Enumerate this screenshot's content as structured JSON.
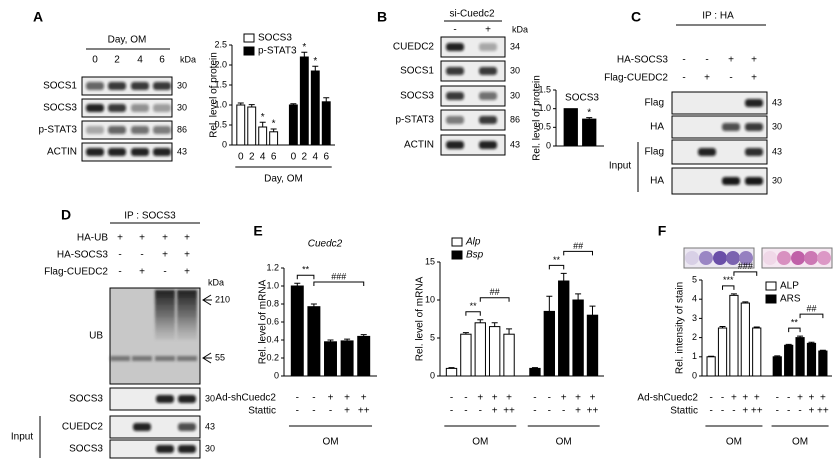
{
  "panels": {
    "A": {
      "letter": "A",
      "header": "Day, OM",
      "lanes": [
        "0",
        "2",
        "4",
        "6"
      ],
      "unit": "kDa",
      "rows": [
        {
          "name": "SOCS1",
          "kda": 30
        },
        {
          "name": "SOCS3",
          "kda": 30
        },
        {
          "name": "p-STAT3",
          "kda": 86
        },
        {
          "name": "ACTIN",
          "kda": 43
        }
      ]
    },
    "B": {
      "letter": "B",
      "header": "si-Cuedc2",
      "lanes": [
        "-",
        "+"
      ],
      "unit": "kDa",
      "rows": [
        {
          "name": "CUEDC2",
          "kda": 34
        },
        {
          "name": "SOCS1",
          "kda": 30
        },
        {
          "name": "SOCS3",
          "kda": 30
        },
        {
          "name": "p-STAT3",
          "kda": 86
        },
        {
          "name": "ACTIN",
          "kda": 43
        }
      ]
    },
    "C": {
      "letter": "C",
      "header": "IP : HA",
      "conditions": [
        {
          "name": "HA-SOCS3",
          "signs": [
            "-",
            "-",
            "+",
            "+"
          ]
        },
        {
          "name": "Flag-CUEDC2",
          "signs": [
            "-",
            "+",
            "-",
            "+"
          ]
        }
      ],
      "rows": [
        {
          "name": "Flag",
          "kda": 43
        },
        {
          "name": "HA",
          "kda": 30
        },
        {
          "name": "Flag",
          "kda": 43
        },
        {
          "name": "HA",
          "kda": 30
        }
      ],
      "group": "Input"
    },
    "D": {
      "letter": "D",
      "header": "IP : SOCS3",
      "unit": "kDa",
      "conditions": [
        {
          "name": "HA-UB",
          "signs": [
            "+",
            "+",
            "+",
            "+"
          ]
        },
        {
          "name": "HA-SOCS3",
          "signs": [
            "-",
            "-",
            "+",
            "+"
          ]
        },
        {
          "name": "Flag-CUEDC2",
          "signs": [
            "-",
            "+",
            "-",
            "+"
          ]
        }
      ],
      "rows": [
        {
          "name": "UB",
          "markers": [
            210,
            55
          ]
        },
        {
          "name": "SOCS3",
          "kda": 30
        },
        {
          "name": "CUEDC2",
          "kda": 43
        },
        {
          "name": "SOCS3",
          "kda": 30
        }
      ],
      "group": "Input"
    },
    "E": {
      "letter": "E"
    },
    "F": {
      "letter": "F"
    }
  },
  "chart_data": [
    {
      "type": "bar",
      "ylabel": "Rel. level of protein",
      "ylim": [
        0,
        2.5
      ],
      "yticks": [
        0,
        0.5,
        {
          "value": 1,
          "label": "1.0"
        },
        1.5,
        {
          "value": 2,
          "label": "2.0"
        },
        2.5
      ],
      "categories": [
        "0",
        "2",
        "4",
        "6"
      ],
      "xlabel": "Day, OM",
      "series": [
        {
          "name": "SOCS3",
          "color": "#ffffff",
          "values": [
            1.0,
            0.95,
            0.45,
            0.33
          ],
          "errors": [
            0.05,
            0.06,
            0.12,
            0.07
          ],
          "stars": [
            null,
            null,
            "*",
            "*"
          ]
        },
        {
          "name": "p-STAT3",
          "color": "#000000",
          "values": [
            1.0,
            2.2,
            1.85,
            1.08
          ],
          "errors": [
            0.03,
            0.12,
            0.12,
            0.1
          ],
          "stars": [
            null,
            "*",
            "*",
            null
          ]
        }
      ]
    },
    {
      "type": "bar",
      "title": "SOCS3",
      "ylabel": "Rel. level of protein",
      "ylim": [
        0,
        1.5
      ],
      "yticks": [
        0,
        0.5,
        {
          "value": 1,
          "label": "1.0"
        },
        1.5
      ],
      "series": [
        {
          "color": "#000000",
          "values": [
            1.0,
            0.72
          ],
          "errors": [
            null,
            0.04
          ],
          "stars": [
            null,
            "*"
          ]
        }
      ]
    },
    {
      "type": "bar",
      "title": "Cuedc2",
      "ylabel": "Rel. level of mRNA",
      "ylim": [
        0,
        1.2
      ],
      "yticks": [
        0,
        0.2,
        0.4,
        0.6,
        0.8,
        {
          "value": 1,
          "label": "1.0"
        },
        1.2
      ],
      "series": [
        {
          "color": "#000000",
          "values": [
            1.0,
            0.77,
            0.38,
            0.39,
            0.44
          ],
          "errors": [
            0.03,
            0.03,
            0.02,
            0.02,
            0.02
          ],
          "comparisons": [
            {
              "label": "**",
              "pair": [
                0,
                1
              ]
            },
            {
              "label": "###",
              "pair": [
                1,
                4
              ]
            }
          ]
        }
      ],
      "treatments": [
        {
          "name": "Ad-shCuedc2",
          "signs": [
            "-",
            "-",
            "+",
            "+",
            "+"
          ]
        },
        {
          "name": "Stattic",
          "signs": [
            "-",
            "-",
            "-",
            "+",
            "++"
          ]
        }
      ],
      "group_labels": [
        "OM"
      ]
    },
    {
      "type": "bar",
      "ylabel": "Rel. level of mRNA",
      "ylim": [
        0,
        15
      ],
      "yticks": [
        0,
        5,
        10,
        15
      ],
      "series": [
        {
          "name": "Alp",
          "color": "#ffffff",
          "values": [
            1,
            5.5,
            7,
            6.5,
            5.5
          ],
          "errors": [
            0.1,
            0.2,
            0.4,
            0.5,
            0.7
          ],
          "comparisons": [
            {
              "label": "**",
              "pair": [
                1,
                2
              ]
            },
            {
              "label": "##",
              "pair": [
                2,
                4
              ]
            }
          ]
        },
        {
          "name": "Bsp",
          "color": "#000000",
          "values": [
            1,
            8.5,
            12.5,
            10,
            8
          ],
          "errors": [
            0.1,
            2,
            1,
            0.8,
            1.2
          ],
          "comparisons": [
            {
              "label": "**",
              "pair": [
                1,
                2
              ]
            },
            {
              "label": "##",
              "pair": [
                2,
                4
              ]
            }
          ]
        }
      ],
      "treatments": [
        {
          "signs": [
            "-",
            "-",
            "+",
            "+",
            "+",
            "-",
            "-",
            "+",
            "+",
            "+"
          ]
        },
        {
          "signs": [
            "-",
            "-",
            "-",
            "+",
            "++",
            "-",
            "-",
            "-",
            "+",
            "++"
          ]
        }
      ],
      "group_labels": [
        "OM",
        "OM"
      ]
    },
    {
      "type": "bar",
      "ylabel": "Rel. intensity of stain",
      "ylim": [
        0,
        5
      ],
      "yticks": [
        0,
        1,
        2,
        3,
        4,
        5
      ],
      "series": [
        {
          "name": "ALP",
          "color": "#ffffff",
          "values": [
            1,
            2.5,
            4.2,
            3.8,
            2.5
          ],
          "errors": [
            0.03,
            0.08,
            0.08,
            0.06,
            0.05
          ],
          "comparisons": [
            {
              "label": "***",
              "pair": [
                1,
                2
              ]
            },
            {
              "label": "###",
              "pair": [
                2,
                4
              ]
            }
          ]
        },
        {
          "name": "ARS",
          "color": "#000000",
          "values": [
            1,
            1.6,
            2.0,
            1.7,
            1.3
          ],
          "errors": [
            0.05,
            0.05,
            0.08,
            0.06,
            0.04
          ],
          "comparisons": [
            {
              "label": "**",
              "pair": [
                1,
                2
              ]
            },
            {
              "label": "##",
              "pair": [
                2,
                4
              ]
            }
          ]
        }
      ],
      "treatments": [
        {
          "name": "Ad-shCuedc2",
          "signs": [
            "-",
            "-",
            "+",
            "+",
            "+",
            "-",
            "-",
            "+",
            "+",
            "+"
          ]
        },
        {
          "name": "Stattic",
          "signs": [
            "-",
            "-",
            "-",
            "+",
            "++",
            "-",
            "-",
            "-",
            "+",
            "++"
          ]
        }
      ],
      "group_labels": [
        "OM",
        "OM"
      ]
    }
  ]
}
